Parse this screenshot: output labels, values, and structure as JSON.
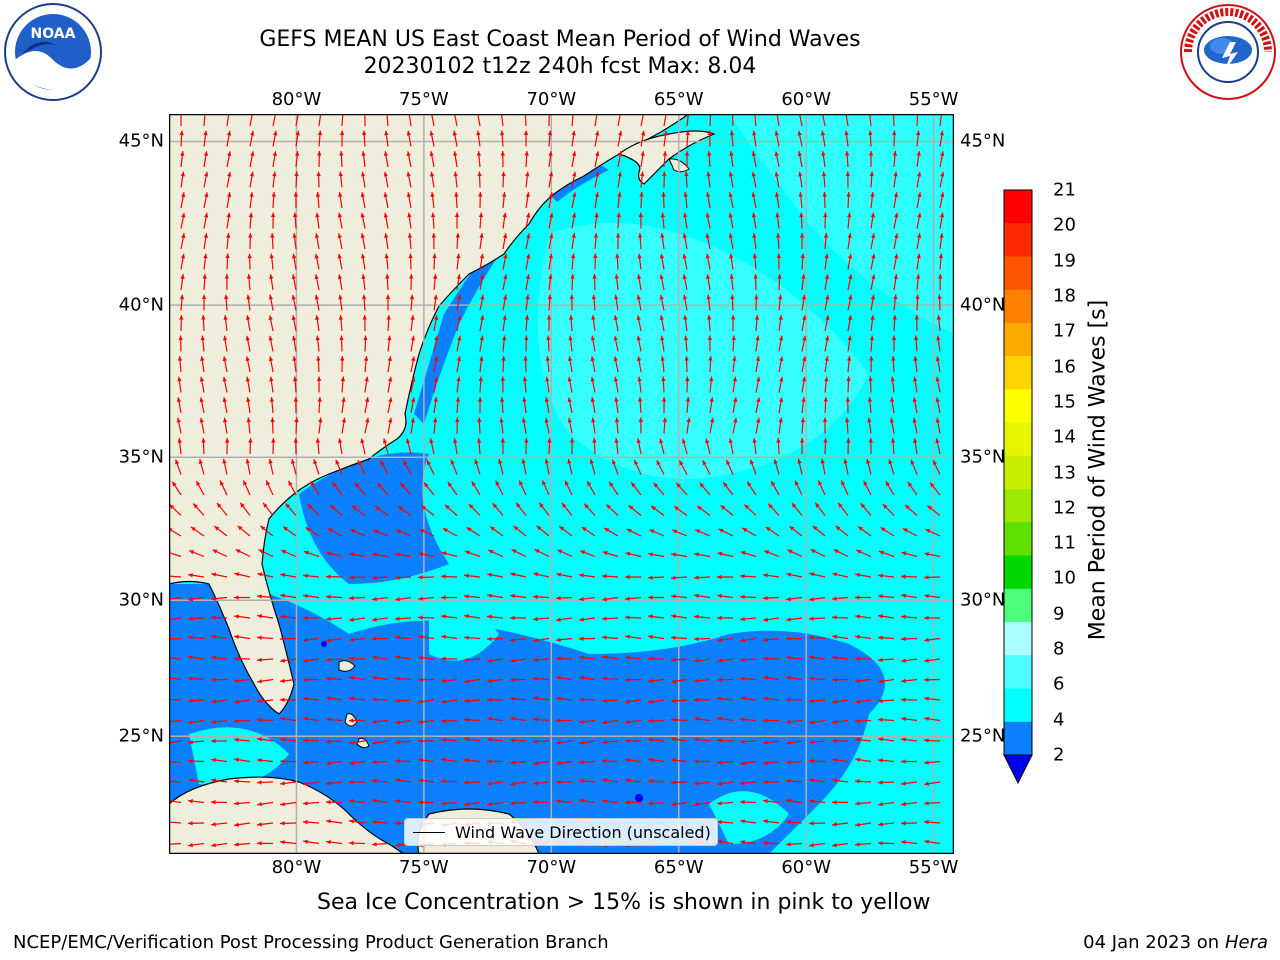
{
  "title": {
    "line1": "GEFS MEAN US East Coast Mean Period of Wind Waves",
    "line2": "20230102 t12z 240h fcst   Max: 8.04"
  },
  "logos": {
    "left": "noaa-logo",
    "left_text": "NOAA",
    "right": "national-weather-service-logo",
    "right_text": "NATIONAL WEATHER SERVICE"
  },
  "axes": {
    "lon_ticks": [
      "80°W",
      "75°W",
      "70°W",
      "65°W",
      "60°W",
      "55°W"
    ],
    "lat_ticks": [
      "45°N",
      "40°N",
      "35°N",
      "30°N",
      "25°N"
    ],
    "lon_values": [
      -80,
      -75,
      -70,
      -65,
      -60,
      -55
    ],
    "lat_values": [
      45,
      40,
      35,
      30,
      25
    ],
    "lon_range": [
      -85,
      -54.2
    ],
    "lat_range": [
      20.5,
      45.8
    ]
  },
  "colors": {
    "land": "#efeddc",
    "ocean_main": "#00ffff",
    "ocean_light": "#4dffff",
    "ocean_low": "#0a80ff",
    "ocean_min": "#0000ee",
    "grid": "#b0b0b0",
    "arrow": "#ff0000",
    "coast": "#000000"
  },
  "legend": {
    "label": "Wind Wave Direction (unscaled)"
  },
  "colorbar": {
    "title": "Mean Period of Wind Waves [s]",
    "labels": [
      "21",
      "20",
      "19",
      "18",
      "17",
      "16",
      "15",
      "14",
      "13",
      "12",
      "11",
      "10",
      "9",
      "8",
      "6",
      "4",
      "2"
    ],
    "colors": [
      "#ff0000",
      "#ff2a00",
      "#ff5500",
      "#ff8000",
      "#ffaa00",
      "#ffd400",
      "#ffff00",
      "#e6f500",
      "#c8ee00",
      "#9be800",
      "#5de000",
      "#00d800",
      "#4dff7a",
      "#aaffff",
      "#4dffff",
      "#00ffff",
      "#0a80ff"
    ],
    "extend_color": "#0000ee"
  },
  "notes": {
    "ice": "Sea Ice Concentration > 15% is shown in pink to yellow"
  },
  "footer": {
    "left": "NCEP/EMC/Verification Post Processing Product Generation Branch",
    "right_date": "04 Jan 2023 on",
    "right_host": "Hera"
  }
}
